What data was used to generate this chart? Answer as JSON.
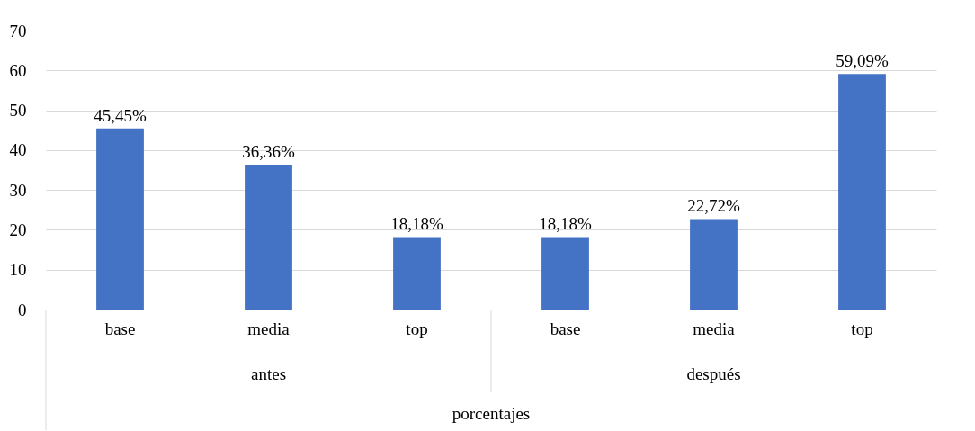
{
  "chart_data": {
    "type": "bar",
    "xlabel": "porcentajes",
    "categories": [
      "base",
      "media",
      "top",
      "base",
      "media",
      "top"
    ],
    "values": [
      45.45,
      36.36,
      18.18,
      18.18,
      22.72,
      59.09
    ],
    "value_labels": [
      "45,45%",
      "36,36%",
      "18,18%",
      "18,18%",
      "22,72%",
      "59,09%"
    ],
    "color": "#4472c4",
    "annotations": [
      "antes",
      "después"
    ],
    "ylim": [
      0,
      70
    ],
    "yticks": [
      0,
      10,
      20,
      30,
      40,
      50,
      60,
      70
    ],
    "grid": "y"
  }
}
